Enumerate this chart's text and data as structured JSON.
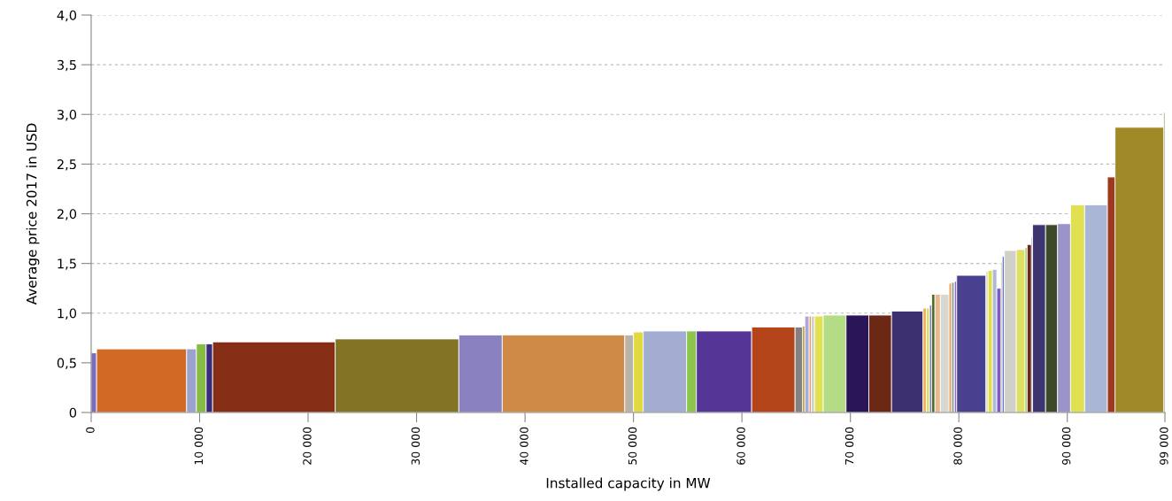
{
  "chart_data": {
    "type": "histogram",
    "xlabel": "Installed capacity in MW",
    "ylabel": "Average price 2017 in USD",
    "bins": [
      0,
      500,
      8800,
      9700,
      10600,
      11200,
      22500,
      33900,
      37900,
      49200,
      50000,
      50900,
      54900,
      55800,
      60900,
      64900,
      65600,
      65800,
      66200,
      66400,
      66700,
      67500,
      69600,
      71700,
      73800,
      76700,
      77000,
      77300,
      77500,
      77800,
      78300,
      79100,
      79300,
      79600,
      79800,
      82500,
      82700,
      83100,
      83500,
      83900,
      84000,
      84200,
      85300,
      86100,
      86300,
      86700,
      86800,
      88000,
      89100,
      90300,
      91600,
      93700,
      94400,
      98900,
      99000
    ],
    "values": [
      0.6,
      0.64,
      0.64,
      0.69,
      0.69,
      0.71,
      0.74,
      0.78,
      0.78,
      0.78,
      0.81,
      0.82,
      0.82,
      0.82,
      0.86,
      0.86,
      0.87,
      0.97,
      0.97,
      0.97,
      0.97,
      0.98,
      0.98,
      0.98,
      1.02,
      1.05,
      1.05,
      1.08,
      1.19,
      1.19,
      1.19,
      1.3,
      1.31,
      1.32,
      1.38,
      1.42,
      1.43,
      1.44,
      1.25,
      1.51,
      1.57,
      1.63,
      1.64,
      1.66,
      1.69,
      1.76,
      1.89,
      1.89,
      1.9,
      2.09,
      2.09,
      2.37,
      2.87,
      3.02
    ],
    "colors": [
      "#7a6cc0",
      "#d06a25",
      "#9aa3d0",
      "#86bb44",
      "#3a2a7a",
      "#862e15",
      "#837325",
      "#8a82c0",
      "#d08a48",
      "#b8b4aa",
      "#e0da40",
      "#a3add2",
      "#8cc450",
      "#553596",
      "#b4451a",
      "#858080",
      "#a89020",
      "#a8a8d8",
      "#e0a060",
      "#d0d0c8",
      "#e0e050",
      "#b4dc84",
      "#2a1558",
      "#6a2815",
      "#3c3070",
      "#e8b060",
      "#e0e060",
      "#7a7ac8",
      "#4a6a28",
      "#e8b890",
      "#d8d8d0",
      "#e09040",
      "#b0b0a8",
      "#8070c0",
      "#4a4090",
      "#d8d8c0",
      "#e0e040",
      "#b0b8d8",
      "#7a5cc0",
      "#a09040",
      "#6a78c8",
      "#d0d0c8",
      "#e0e060",
      "#a0c870",
      "#6a2818",
      "#404050",
      "#3e3470",
      "#3c4a28",
      "#9a94c8",
      "#e0e050",
      "#aab6d6",
      "#a0381e",
      "#a08a28",
      "#6a8a40"
    ],
    "xlim": [
      0,
      99000
    ],
    "xticks": [
      0,
      {
        "value": 10000,
        "label": "10 000"
      },
      {
        "value": 20000,
        "label": "20 000"
      },
      {
        "value": 30000,
        "label": "30 000"
      },
      {
        "value": 40000,
        "label": "40 000"
      },
      {
        "value": 50000,
        "label": "50 000"
      },
      {
        "value": 60000,
        "label": "60 000"
      },
      {
        "value": 70000,
        "label": "70 000"
      },
      {
        "value": 80000,
        "label": "80 000"
      },
      {
        "value": 90000,
        "label": "90 000"
      },
      {
        "value": 99000,
        "label": "99 000"
      }
    ],
    "ylim": [
      0,
      4.0
    ],
    "yticks": [
      0,
      {
        "value": 0.5,
        "label": "0,5"
      },
      {
        "value": 1.0,
        "label": "1,0"
      },
      {
        "value": 1.5,
        "label": "1,5"
      },
      {
        "value": 2.0,
        "label": "2,0"
      },
      {
        "value": 2.5,
        "label": "2,5"
      },
      {
        "value": 3.0,
        "label": "3,0"
      },
      {
        "value": 3.5,
        "label": "3,5"
      },
      {
        "value": 4.0,
        "label": "4,0"
      }
    ],
    "grid": "y"
  }
}
